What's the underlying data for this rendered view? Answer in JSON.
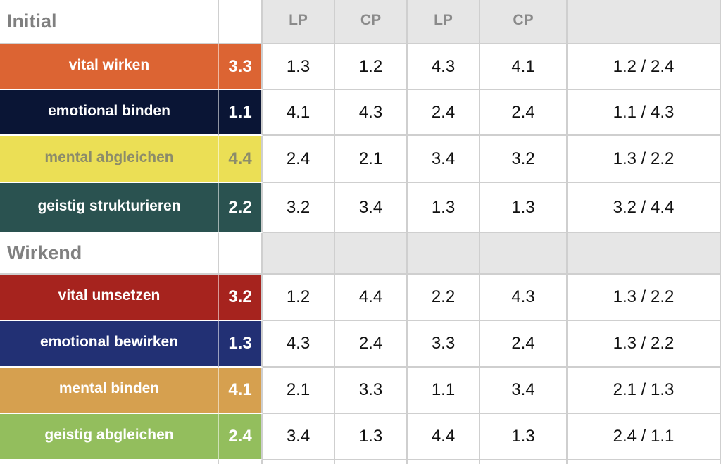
{
  "column_headers": [
    "LP",
    "CP",
    "LP",
    "CP",
    ""
  ],
  "colors": {
    "header_gray": "#e6e6e6",
    "grid_line": "#cfcfcf",
    "section_text": "#808080"
  },
  "sections": [
    {
      "title": "Initial",
      "rows": [
        {
          "name": "vital wirken",
          "score": "3.3",
          "bg": "#dc6433",
          "fg": "#ffffff",
          "values": [
            "1.3",
            "1.2",
            "4.3",
            "4.1",
            "1.2 / 2.4"
          ]
        },
        {
          "name": "emotional binden",
          "score": "1.1",
          "bg": "#0a1535",
          "fg": "#ffffff",
          "values": [
            "4.1",
            "4.3",
            "2.4",
            "2.4",
            "1.1 / 4.3"
          ]
        },
        {
          "name": "mental abgleichen",
          "score": "4.4",
          "bg": "#ebdf55",
          "fg": "#8c8c6a",
          "values": [
            "2.4",
            "2.1",
            "3.4",
            "3.2",
            "1.3 / 2.2"
          ]
        },
        {
          "name": "geistig strukturieren",
          "score": "2.2",
          "bg": "#2a5250",
          "fg": "#ffffff",
          "values": [
            "3.2",
            "3.4",
            "1.3",
            "1.3",
            "3.2 / 4.4"
          ]
        }
      ]
    },
    {
      "title": "Wirkend",
      "rows": [
        {
          "name": "vital umsetzen",
          "score": "3.2",
          "bg": "#a6231e",
          "fg": "#ffffff",
          "values": [
            "1.2",
            "4.4",
            "2.2",
            "4.3",
            "1.3 / 2.2"
          ]
        },
        {
          "name": "emotional bewirken",
          "score": "1.3",
          "bg": "#223074",
          "fg": "#ffffff",
          "values": [
            "4.3",
            "2.4",
            "3.3",
            "2.4",
            "1.3 / 2.2"
          ]
        },
        {
          "name": "mental binden",
          "score": "4.1",
          "bg": "#d6a04f",
          "fg": "#ffffff",
          "values": [
            "2.1",
            "3.3",
            "1.1",
            "3.4",
            "2.1 / 1.3"
          ]
        },
        {
          "name": "geistig abgleichen",
          "score": "2.4",
          "bg": "#93be5d",
          "fg": "#ffffff",
          "values": [
            "3.4",
            "1.3",
            "4.4",
            "1.3",
            "2.4 / 1.1"
          ]
        }
      ]
    }
  ]
}
